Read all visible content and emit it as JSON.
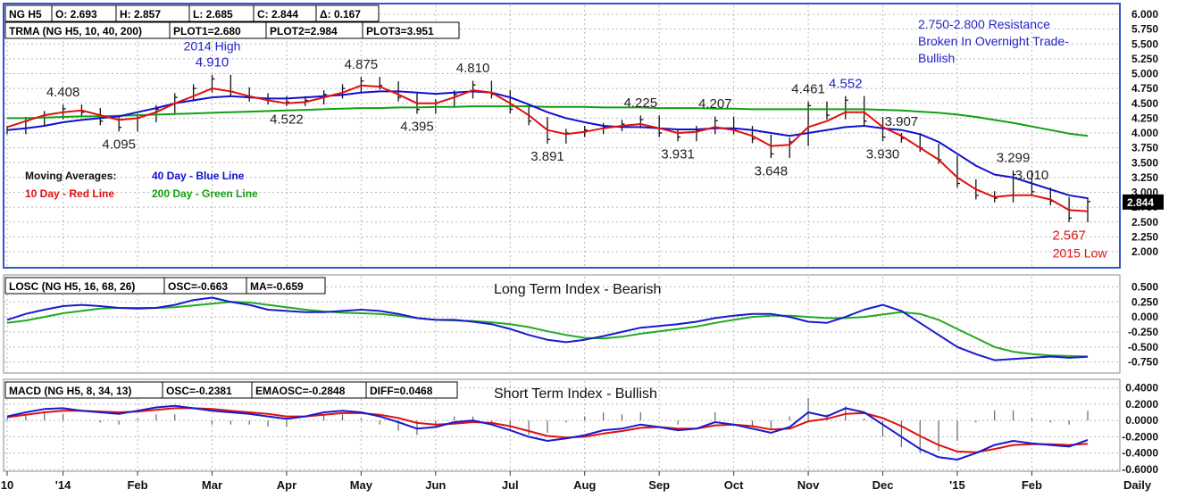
{
  "colors": {
    "frame": "#3355cc",
    "price": "#111111",
    "ma10": "#e01010",
    "ma40": "#1010cc",
    "ma200": "#10a010",
    "losc": "#1a1acc",
    "losc_ma": "#22aa22",
    "macd": "#1a1acc",
    "macd_signal": "#e01010",
    "grid": "#b8b8b8",
    "annot_blue": "#2222cc",
    "annot_red": "#e01010",
    "last_price_bg": "#000000"
  },
  "x_axis": {
    "labels": [
      "10",
      "'14",
      "Feb",
      "Mar",
      "Apr",
      "May",
      "Jun",
      "Jul",
      "Aug",
      "Sep",
      "Oct",
      "Nov",
      "Dec",
      "'15",
      "Feb"
    ],
    "label_index": [
      0,
      3,
      7,
      11,
      15,
      19,
      23,
      27,
      31,
      35,
      39,
      43,
      47,
      51,
      55
    ],
    "period": "Daily"
  },
  "price_panel": {
    "header": {
      "symbol": "NG H5",
      "open": "O: 2.693",
      "high": "H: 2.857",
      "low": "L: 2.685",
      "close": "C: 2.844",
      "change": "Δ: 0.167"
    },
    "trma": {
      "label": "TRMA (NG H5, 10, 40, 200)",
      "plot1": "PLOT1=2.680",
      "plot2": "PLOT2=2.984",
      "plot3": "PLOT3=3.951"
    },
    "last_price": "2.844",
    "legend": {
      "title": "Moving Averages:",
      "blue": "40 Day - Blue Line",
      "red": "10 Day - Red Line",
      "green": "200 Day - Green Line"
    },
    "annotation_resistance": [
      "2.750-2.800 Resistance",
      "Broken In Overnight Trade-",
      "Bullish"
    ],
    "annotation_2014_high": "2014 High",
    "annotation_2015_low": "2015 Low"
  },
  "losc_panel": {
    "label": "LOSC (NG H5, 16, 68, 26)",
    "osc": "OSC=-0.663",
    "ma": "MA=-0.659",
    "title": "Long Term Index - Bearish"
  },
  "macd_panel": {
    "label": "MACD (NG H5, 8, 34, 13)",
    "osc": "OSC=-0.2381",
    "emaosc": "EMAOSC=-0.2848",
    "diff": "DIFF=0.0468",
    "title": "Short Term Index - Bullish"
  },
  "chart_data": [
    {
      "type": "line",
      "name": "price",
      "x_count": 59,
      "ylim": [
        2.0,
        6.0
      ],
      "y_ticks": [
        "2.000",
        "2.250",
        "2.500",
        "2.750",
        "3.000",
        "3.250",
        "3.500",
        "3.750",
        "4.000",
        "4.250",
        "4.500",
        "4.750",
        "5.000",
        "5.250",
        "5.500",
        "5.750",
        "6.000"
      ],
      "price": [
        4.05,
        4.2,
        4.3,
        4.408,
        4.35,
        4.2,
        4.095,
        4.25,
        4.4,
        4.6,
        4.75,
        4.91,
        4.7,
        4.6,
        4.55,
        4.522,
        4.55,
        4.65,
        4.75,
        4.875,
        4.8,
        4.6,
        4.395,
        4.5,
        4.65,
        4.81,
        4.65,
        4.4,
        4.2,
        3.891,
        4.0,
        4.05,
        4.1,
        4.15,
        4.225,
        4.0,
        3.931,
        4.05,
        4.207,
        4.05,
        3.9,
        3.648,
        3.85,
        4.461,
        4.3,
        4.552,
        4.2,
        3.93,
        3.907,
        3.75,
        3.55,
        3.15,
        2.95,
        2.9,
        3.299,
        3.01,
        2.85,
        2.567,
        2.844
      ],
      "ma10": [
        4.1,
        4.2,
        4.3,
        4.35,
        4.38,
        4.3,
        4.22,
        4.25,
        4.35,
        4.5,
        4.62,
        4.75,
        4.7,
        4.62,
        4.55,
        4.5,
        4.52,
        4.6,
        4.68,
        4.8,
        4.78,
        4.65,
        4.5,
        4.5,
        4.6,
        4.72,
        4.68,
        4.5,
        4.3,
        4.05,
        3.98,
        4.02,
        4.08,
        4.12,
        4.15,
        4.08,
        4.0,
        4.02,
        4.1,
        4.05,
        3.95,
        3.78,
        3.8,
        4.1,
        4.2,
        4.35,
        4.35,
        4.1,
        3.95,
        3.75,
        3.55,
        3.25,
        3.05,
        2.92,
        2.95,
        2.95,
        2.88,
        2.7,
        2.68
      ],
      "ma40": [
        4.05,
        4.08,
        4.12,
        4.18,
        4.22,
        4.25,
        4.28,
        4.35,
        4.42,
        4.5,
        4.55,
        4.6,
        4.62,
        4.6,
        4.58,
        4.58,
        4.6,
        4.62,
        4.64,
        4.68,
        4.7,
        4.7,
        4.68,
        4.66,
        4.68,
        4.7,
        4.68,
        4.6,
        4.48,
        4.35,
        4.25,
        4.18,
        4.12,
        4.1,
        4.1,
        4.08,
        4.06,
        4.06,
        4.08,
        4.08,
        4.05,
        4.0,
        3.95,
        4.0,
        4.05,
        4.1,
        4.12,
        4.08,
        4.05,
        3.98,
        3.85,
        3.65,
        3.45,
        3.3,
        3.25,
        3.15,
        3.05,
        2.95,
        2.9
      ],
      "ma200": [
        4.25,
        4.25,
        4.26,
        4.27,
        4.28,
        4.28,
        4.29,
        4.3,
        4.31,
        4.32,
        4.33,
        4.34,
        4.35,
        4.36,
        4.37,
        4.38,
        4.39,
        4.4,
        4.41,
        4.42,
        4.42,
        4.43,
        4.43,
        4.44,
        4.44,
        4.45,
        4.45,
        4.45,
        4.45,
        4.44,
        4.44,
        4.44,
        4.43,
        4.43,
        4.43,
        4.42,
        4.42,
        4.42,
        4.41,
        4.41,
        4.4,
        4.4,
        4.4,
        4.4,
        4.4,
        4.4,
        4.4,
        4.39,
        4.38,
        4.36,
        4.34,
        4.31,
        4.27,
        4.22,
        4.17,
        4.11,
        4.05,
        3.99,
        3.951
      ],
      "labels": [
        {
          "i": 3,
          "v": "4.408",
          "pos": "above",
          "color": "dark"
        },
        {
          "i": 6,
          "v": "4.095",
          "pos": "below",
          "color": "dark"
        },
        {
          "i": 11,
          "v": "4.910",
          "pos": "above",
          "color": "blue"
        },
        {
          "i": 15,
          "v": "4.522",
          "pos": "below",
          "color": "dark"
        },
        {
          "i": 19,
          "v": "4.875",
          "pos": "above",
          "color": "dark"
        },
        {
          "i": 22,
          "v": "4.395",
          "pos": "below",
          "color": "dark"
        },
        {
          "i": 25,
          "v": "4.810",
          "pos": "above",
          "color": "dark"
        },
        {
          "i": 29,
          "v": "3.891",
          "pos": "below",
          "color": "dark"
        },
        {
          "i": 34,
          "v": "4.225",
          "pos": "above",
          "color": "dark"
        },
        {
          "i": 36,
          "v": "3.931",
          "pos": "below",
          "color": "dark"
        },
        {
          "i": 38,
          "v": "4.207",
          "pos": "above",
          "color": "dark"
        },
        {
          "i": 41,
          "v": "3.648",
          "pos": "below",
          "color": "dark"
        },
        {
          "i": 43,
          "v": "4.461",
          "pos": "above",
          "color": "dark"
        },
        {
          "i": 45,
          "v": "4.552",
          "pos": "above",
          "color": "blue"
        },
        {
          "i": 47,
          "v": "3.930",
          "pos": "below",
          "color": "dark"
        },
        {
          "i": 48,
          "v": "3.907",
          "pos": "above",
          "color": "dark"
        },
        {
          "i": 54,
          "v": "3.299",
          "pos": "above",
          "color": "dark"
        },
        {
          "i": 55,
          "v": "3.010",
          "pos": "above",
          "color": "dark"
        },
        {
          "i": 57,
          "v": "2.567",
          "pos": "below",
          "color": "red"
        }
      ]
    },
    {
      "type": "line",
      "name": "losc",
      "x_count": 59,
      "ylim": [
        -0.875,
        0.625
      ],
      "y_ticks": [
        "0.500",
        "0.250",
        "0.000",
        "-0.250",
        "-0.500",
        "-0.750"
      ],
      "osc": [
        -0.05,
        0.05,
        0.12,
        0.18,
        0.2,
        0.18,
        0.15,
        0.14,
        0.15,
        0.2,
        0.28,
        0.32,
        0.25,
        0.2,
        0.12,
        0.1,
        0.08,
        0.08,
        0.1,
        0.12,
        0.1,
        0.05,
        -0.02,
        -0.05,
        -0.05,
        -0.08,
        -0.12,
        -0.2,
        -0.3,
        -0.38,
        -0.42,
        -0.38,
        -0.32,
        -0.25,
        -0.18,
        -0.15,
        -0.12,
        -0.08,
        -0.02,
        0.02,
        0.05,
        0.05,
        0.0,
        -0.08,
        -0.1,
        0.0,
        0.12,
        0.2,
        0.1,
        -0.1,
        -0.3,
        -0.5,
        -0.62,
        -0.72,
        -0.7,
        -0.68,
        -0.66,
        -0.68,
        -0.663
      ],
      "ma": [
        -0.1,
        -0.06,
        0.0,
        0.06,
        0.1,
        0.14,
        0.15,
        0.15,
        0.15,
        0.16,
        0.19,
        0.22,
        0.25,
        0.24,
        0.2,
        0.16,
        0.12,
        0.09,
        0.07,
        0.06,
        0.05,
        0.02,
        -0.02,
        -0.05,
        -0.06,
        -0.07,
        -0.09,
        -0.12,
        -0.17,
        -0.24,
        -0.3,
        -0.35,
        -0.36,
        -0.33,
        -0.28,
        -0.24,
        -0.2,
        -0.16,
        -0.1,
        -0.05,
        0.0,
        0.02,
        0.02,
        0.0,
        -0.02,
        -0.02,
        0.0,
        0.04,
        0.08,
        0.05,
        -0.05,
        -0.2,
        -0.35,
        -0.5,
        -0.58,
        -0.62,
        -0.64,
        -0.65,
        -0.659
      ]
    },
    {
      "type": "line",
      "name": "macd",
      "x_count": 59,
      "ylim": [
        -0.6,
        0.45
      ],
      "y_ticks": [
        "0.4000",
        "0.2000",
        "0.0000",
        "-0.2000",
        "-0.4000",
        "-0.6000"
      ],
      "macd": [
        0.05,
        0.1,
        0.14,
        0.15,
        0.12,
        0.1,
        0.08,
        0.12,
        0.16,
        0.18,
        0.15,
        0.12,
        0.1,
        0.08,
        0.05,
        0.02,
        0.05,
        0.1,
        0.12,
        0.1,
        0.05,
        -0.02,
        -0.1,
        -0.08,
        -0.02,
        0.0,
        -0.05,
        -0.12,
        -0.2,
        -0.25,
        -0.22,
        -0.18,
        -0.12,
        -0.1,
        -0.05,
        -0.08,
        -0.12,
        -0.1,
        -0.02,
        -0.05,
        -0.1,
        -0.15,
        -0.08,
        0.1,
        0.05,
        0.15,
        0.1,
        -0.05,
        -0.2,
        -0.35,
        -0.45,
        -0.48,
        -0.4,
        -0.3,
        -0.25,
        -0.28,
        -0.3,
        -0.32,
        -0.2381
      ],
      "signal": [
        0.04,
        0.07,
        0.1,
        0.12,
        0.12,
        0.11,
        0.1,
        0.11,
        0.13,
        0.15,
        0.15,
        0.14,
        0.12,
        0.1,
        0.08,
        0.05,
        0.05,
        0.07,
        0.09,
        0.09,
        0.07,
        0.03,
        -0.03,
        -0.05,
        -0.04,
        -0.02,
        -0.03,
        -0.07,
        -0.13,
        -0.19,
        -0.21,
        -0.2,
        -0.16,
        -0.13,
        -0.09,
        -0.08,
        -0.1,
        -0.1,
        -0.06,
        -0.05,
        -0.07,
        -0.11,
        -0.1,
        -0.01,
        0.02,
        0.08,
        0.09,
        0.03,
        -0.07,
        -0.19,
        -0.3,
        -0.38,
        -0.39,
        -0.35,
        -0.3,
        -0.29,
        -0.29,
        -0.3,
        -0.2848
      ]
    }
  ]
}
